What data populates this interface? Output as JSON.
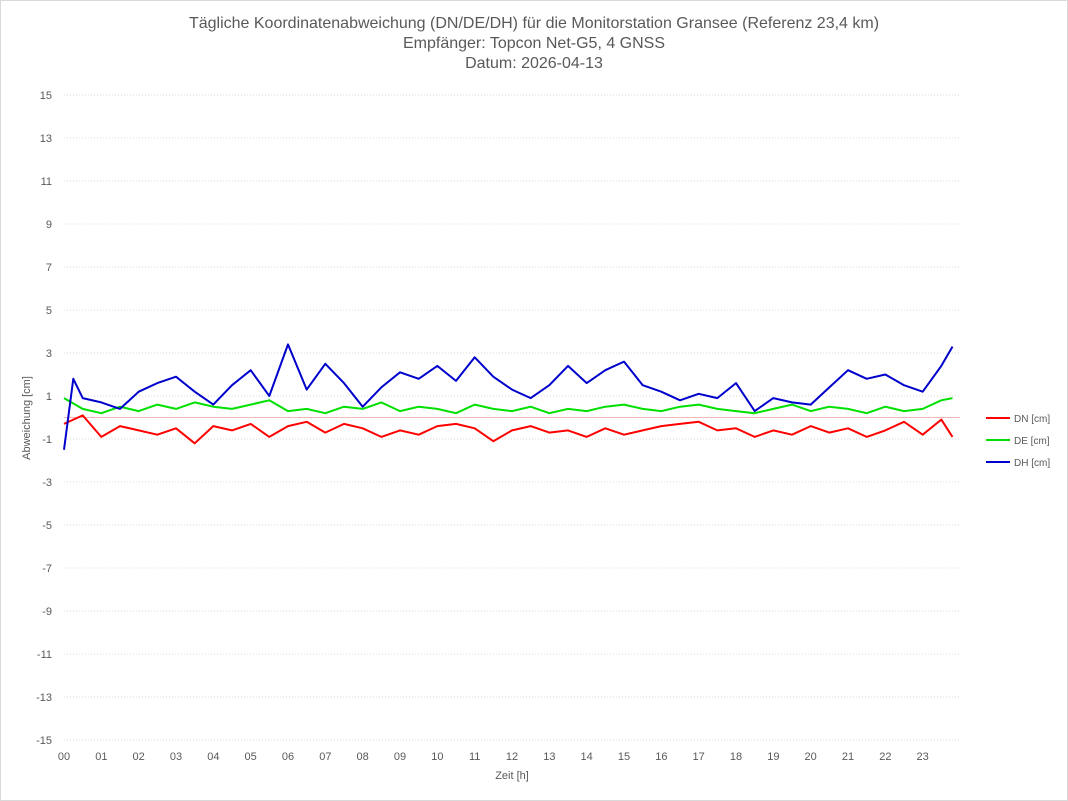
{
  "chart_data": {
    "type": "line",
    "title_lines": [
      "Tägliche Koordinatenabweichung (DN/DE/DH) für die Monitorstation Gransee (Referenz 23,4 km)",
      "Empfänger: Topcon Net-G5, 4 GNSS",
      "Datum: 2026-04-13"
    ],
    "xlabel": "Zeit [h]",
    "ylabel": "Abweichung [cm]",
    "ylim": [
      -15,
      15
    ],
    "xlim": [
      0,
      24
    ],
    "y_ticks": [
      "-15",
      "-13",
      "-11",
      "-9",
      "-7",
      "-5",
      "-3",
      "-1",
      "1",
      "3",
      "5",
      "7",
      "9",
      "11",
      "13",
      "15"
    ],
    "x_ticks": [
      "00",
      "01",
      "02",
      "03",
      "04",
      "05",
      "06",
      "07",
      "08",
      "09",
      "10",
      "11",
      "12",
      "13",
      "14",
      "15",
      "16",
      "17",
      "18",
      "19",
      "20",
      "21",
      "22",
      "23"
    ],
    "grid": "horizontal dashed",
    "legend_position": "right",
    "series": [
      {
        "name": "DN [cm]",
        "color": "#ff0000",
        "x": [
          0,
          0.5,
          1,
          1.5,
          2,
          2.5,
          3,
          3.5,
          4,
          4.5,
          5,
          5.5,
          6,
          6.5,
          7,
          7.5,
          8,
          8.5,
          9,
          9.5,
          10,
          10.5,
          11,
          11.5,
          12,
          12.5,
          13,
          13.5,
          14,
          14.5,
          15,
          15.5,
          16,
          16.5,
          17,
          17.5,
          18,
          18.5,
          19,
          19.5,
          20,
          20.5,
          21,
          21.5,
          22,
          22.5,
          23,
          23.5,
          23.8
        ],
        "values": [
          -0.3,
          0.1,
          -0.9,
          -0.4,
          -0.6,
          -0.8,
          -0.5,
          -1.2,
          -0.4,
          -0.6,
          -0.3,
          -0.9,
          -0.4,
          -0.2,
          -0.7,
          -0.3,
          -0.5,
          -0.9,
          -0.6,
          -0.8,
          -0.4,
          -0.3,
          -0.5,
          -1.1,
          -0.6,
          -0.4,
          -0.7,
          -0.6,
          -0.9,
          -0.5,
          -0.8,
          -0.6,
          -0.4,
          -0.3,
          -0.2,
          -0.6,
          -0.5,
          -0.9,
          -0.6,
          -0.8,
          -0.4,
          -0.7,
          -0.5,
          -0.9,
          -0.6,
          -0.2,
          -0.8,
          -0.1,
          -0.9
        ]
      },
      {
        "name": "DE [cm]",
        "color": "#00e000",
        "x": [
          0,
          0.5,
          1,
          1.5,
          2,
          2.5,
          3,
          3.5,
          4,
          4.5,
          5,
          5.5,
          6,
          6.5,
          7,
          7.5,
          8,
          8.5,
          9,
          9.5,
          10,
          10.5,
          11,
          11.5,
          12,
          12.5,
          13,
          13.5,
          14,
          14.5,
          15,
          15.5,
          16,
          16.5,
          17,
          17.5,
          18,
          18.5,
          19,
          19.5,
          20,
          20.5,
          21,
          21.5,
          22,
          22.5,
          23,
          23.5,
          23.8
        ],
        "values": [
          0.9,
          0.4,
          0.2,
          0.5,
          0.3,
          0.6,
          0.4,
          0.7,
          0.5,
          0.4,
          0.6,
          0.8,
          0.3,
          0.4,
          0.2,
          0.5,
          0.4,
          0.7,
          0.3,
          0.5,
          0.4,
          0.2,
          0.6,
          0.4,
          0.3,
          0.5,
          0.2,
          0.4,
          0.3,
          0.5,
          0.6,
          0.4,
          0.3,
          0.5,
          0.6,
          0.4,
          0.3,
          0.2,
          0.4,
          0.6,
          0.3,
          0.5,
          0.4,
          0.2,
          0.5,
          0.3,
          0.4,
          0.8,
          0.9
        ]
      },
      {
        "name": "DH [cm]",
        "color": "#0000cc",
        "x": [
          0,
          0.25,
          0.5,
          1,
          1.5,
          2,
          2.5,
          3,
          3.5,
          4,
          4.5,
          5,
          5.5,
          6,
          6.5,
          7,
          7.5,
          8,
          8.5,
          9,
          9.5,
          10,
          10.5,
          11,
          11.5,
          12,
          12.5,
          13,
          13.5,
          14,
          14.5,
          15,
          15.5,
          16,
          16.5,
          17,
          17.5,
          18,
          18.5,
          19,
          19.5,
          20,
          20.5,
          21,
          21.5,
          22,
          22.5,
          23,
          23.5,
          23.8
        ],
        "values": [
          -1.5,
          1.8,
          0.9,
          0.7,
          0.4,
          1.2,
          1.6,
          1.9,
          1.2,
          0.6,
          1.5,
          2.2,
          1.0,
          3.4,
          1.3,
          2.5,
          1.6,
          0.5,
          1.4,
          2.1,
          1.8,
          2.4,
          1.7,
          2.8,
          1.9,
          1.3,
          0.9,
          1.5,
          2.4,
          1.6,
          2.2,
          2.6,
          1.5,
          1.2,
          0.8,
          1.1,
          0.9,
          1.6,
          0.3,
          0.9,
          0.7,
          0.6,
          1.4,
          2.2,
          1.8,
          2.0,
          1.5,
          1.2,
          2.4,
          3.3
        ]
      }
    ]
  }
}
